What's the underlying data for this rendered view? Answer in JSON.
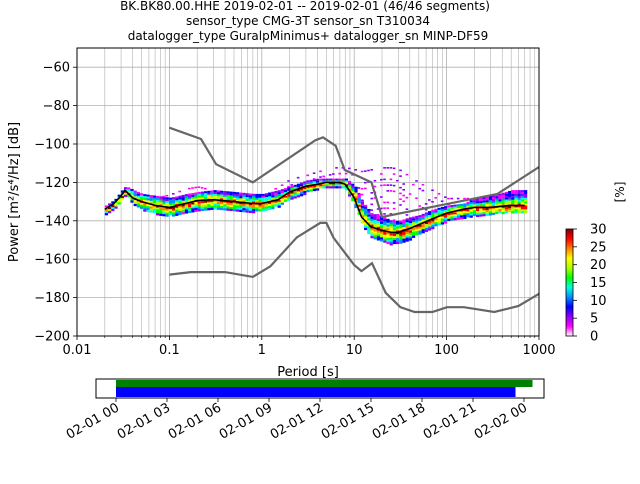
{
  "figure": {
    "title_lines": [
      "BK.BK80.00.HHE   2019-02-01 -- 2019-02-01  (46/46 segments)",
      "sensor_type CMG-3T sensor_sn T310034",
      "datalogger_type GuralpMinimus+ datalogger_sn MINP-DF59"
    ]
  },
  "chart_data": [
    {
      "type": "heatmap",
      "title": "",
      "xlabel": "Period [s]",
      "ylabel": "Power [m²/s⁴/Hz] [dB]",
      "xscale": "log",
      "xlim": [
        0.01,
        1000
      ],
      "ylim": [
        -200,
        -50
      ],
      "xticks": [
        {
          "value": 0.01,
          "label": "0.01"
        },
        {
          "value": 0.1,
          "label": "0.1"
        },
        {
          "value": 1,
          "label": "1"
        },
        {
          "value": 10,
          "label": "10"
        },
        {
          "value": 100,
          "label": "100"
        },
        {
          "value": 1000,
          "label": "1000"
        }
      ],
      "yticks": [
        {
          "value": -60,
          "label": "−60"
        },
        {
          "value": -80,
          "label": "−80"
        },
        {
          "value": -100,
          "label": "−100"
        },
        {
          "value": -120,
          "label": "−120"
        },
        {
          "value": -140,
          "label": "−140"
        },
        {
          "value": -160,
          "label": "−160"
        },
        {
          "value": -180,
          "label": "−180"
        },
        {
          "value": -200,
          "label": "−200"
        }
      ],
      "grid": true,
      "colorbar": {
        "label": "[%]",
        "range": [
          0,
          30
        ],
        "ticks": [
          {
            "value": 0,
            "label": "0"
          },
          {
            "value": 5,
            "label": "5"
          },
          {
            "value": 10,
            "label": "10"
          },
          {
            "value": 15,
            "label": "15"
          },
          {
            "value": 20,
            "label": "20"
          },
          {
            "value": 25,
            "label": "25"
          },
          {
            "value": 30,
            "label": "30"
          }
        ],
        "colors": [
          "#ffffff",
          "#ff00ff",
          "#8a00ff",
          "#0000ff",
          "#0090ff",
          "#00ffe0",
          "#00ff00",
          "#b0ff00",
          "#ffff00",
          "#ff8000",
          "#ff0000",
          "#800000"
        ]
      },
      "noise_model_high": {
        "x": [
          0.1,
          0.22,
          0.32,
          0.8,
          3.8,
          4.6,
          6.3,
          7.9,
          15.4,
          20,
          354.8,
          1000
        ],
        "y": [
          -91.5,
          -97.4,
          -110.5,
          -120,
          -98,
          -96.5,
          -101,
          -113.5,
          -120,
          -138,
          -126,
          -112
        ]
      },
      "noise_model_low": {
        "x": [
          0.1,
          0.17,
          0.4,
          0.8,
          1.24,
          2.4,
          4.3,
          5,
          6,
          10,
          12,
          15.6,
          21.9,
          31.6,
          45,
          70,
          101,
          154,
          328,
          600,
          1000
        ],
        "y": [
          -168,
          -166.7,
          -166.7,
          -169.2,
          -163.7,
          -148.6,
          -141.1,
          -141.1,
          -149,
          -163,
          -166.2,
          -162.1,
          -177.5,
          -185,
          -187.5,
          -187.5,
          -185,
          -185,
          -187.5,
          -184.4,
          -178
        ]
      },
      "mean_psd": {
        "x": [
          0.02,
          0.025,
          0.03,
          0.033,
          0.04,
          0.05,
          0.07,
          0.1,
          0.15,
          0.2,
          0.3,
          0.5,
          0.8,
          1,
          1.5,
          2,
          3,
          4,
          5,
          6,
          7,
          8,
          10,
          12,
          15,
          20,
          25,
          30,
          40,
          50,
          70,
          100,
          150,
          200,
          300,
          500,
          700
        ],
        "y": [
          -134,
          -131,
          -127,
          -124,
          -128,
          -130,
          -132,
          -133,
          -131,
          -129.5,
          -129,
          -130,
          -131,
          -131,
          -129,
          -125,
          -122,
          -121,
          -120,
          -120,
          -120,
          -121,
          -128,
          -138,
          -143,
          -145,
          -146,
          -146,
          -144,
          -142,
          -139,
          -136,
          -134,
          -133,
          -133,
          -132,
          -132
        ]
      },
      "psd_density": {
        "x": [
          0.02,
          0.025,
          0.03,
          0.033,
          0.04,
          0.05,
          0.07,
          0.1,
          0.15,
          0.2,
          0.3,
          0.5,
          0.8,
          1,
          1.5,
          2,
          3,
          4,
          5,
          6,
          7,
          8,
          10,
          12,
          15,
          20,
          25,
          30,
          40,
          50,
          70,
          100,
          150,
          200,
          300,
          500,
          700
        ],
        "y_min": [
          -136,
          -133,
          -129,
          -126,
          -131,
          -134,
          -136,
          -137,
          -135,
          -134,
          -134,
          -134,
          -135,
          -134,
          -132,
          -128,
          -125,
          -123,
          -122,
          -122,
          -122,
          -124,
          -132,
          -142,
          -148,
          -150,
          -152,
          -151,
          -149,
          -146,
          -143,
          -140,
          -138,
          -137,
          -136,
          -135,
          -135
        ],
        "y_max": [
          -132,
          -129,
          -124,
          -122,
          -124,
          -126,
          -127,
          -128,
          -126,
          -125,
          -124,
          -125,
          -126,
          -126,
          -124,
          -122,
          -119,
          -118,
          -118,
          -118,
          -118,
          -118,
          -122,
          -130,
          -136,
          -138,
          -140,
          -140,
          -138,
          -137,
          -134,
          -132,
          -131,
          -128,
          -127,
          -124,
          -124
        ],
        "outlier_upper": [
          -135,
          -131,
          -125,
          -123,
          -128,
          -129,
          -128,
          -126,
          -123,
          -122,
          -124,
          -128,
          -128,
          -126,
          -122,
          -118,
          -116,
          -114,
          -113,
          -112,
          -112,
          -112,
          -113,
          -114,
          -113,
          -112,
          -112,
          -113,
          -117,
          -120,
          -124,
          -128,
          -128,
          -128,
          -127,
          -124,
          -124
        ]
      }
    }
  ],
  "coverage_timeline": {
    "start_label": "02-01 00",
    "tick_labels": [
      "02-01 00",
      "02-01 03",
      "02-01 06",
      "02-01 09",
      "02-01 12",
      "02-01 15",
      "02-01 18",
      "02-01 21",
      "02-02 00"
    ],
    "green_bar_start_h": 0,
    "green_bar_end_h": 24.5,
    "blue_bar_start_h": 0,
    "blue_bar_end_h": 23.5,
    "colors": {
      "green": "#008000",
      "blue": "#0000ff"
    }
  }
}
